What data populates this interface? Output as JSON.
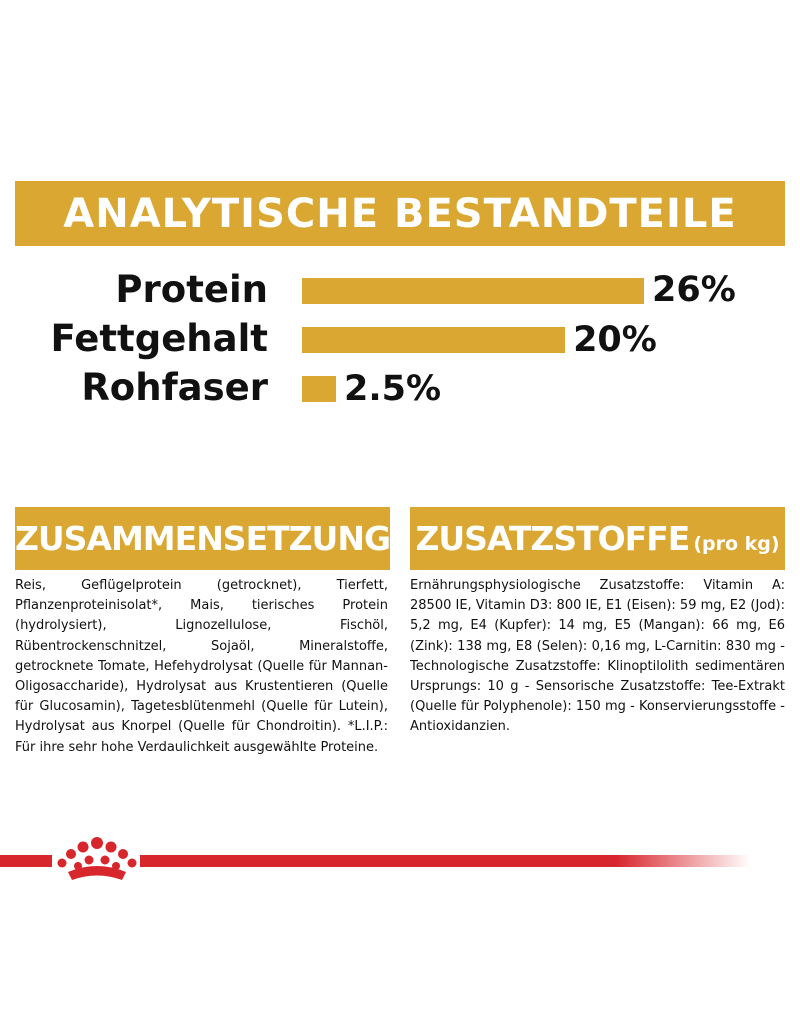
{
  "banner": {
    "title": "ANALYTISCHE BESTANDTEILE"
  },
  "nutrients": [
    {
      "label": "Protein",
      "value": "26%",
      "percent": 26
    },
    {
      "label": "Fettgehalt",
      "value": "20%",
      "percent": 20
    },
    {
      "label": "Rohfaser",
      "value": "2.5%",
      "percent": 2.5
    }
  ],
  "composition": {
    "title": "ZUSAMMENSETZUNG",
    "text": "Reis, Geflügelprotein (getrocknet), Tierfett, Pflanzenproteinisolat*, Mais, tierisches Protein (hydrolysiert), Lignozellulose, Fischöl, Rübentrockenschnitzel, Sojaöl, Mineralstoffe, getrocknete Tomate, Hefehydrolysat (Quelle für Mannan-Oligosaccharide), Hydrolysat aus Krustentieren (Quelle für Glucosamin), Tagetesblütenmehl (Quelle für Lutein), Hydrolysat aus Knorpel (Quelle für Chondroitin). *L.I.P.: Für ihre sehr hohe Verdaulichkeit ausgewählte Proteine."
  },
  "additives": {
    "title": "ZUSATZSTOFFE",
    "title_suffix": "(pro kg)",
    "text": "Ernährungsphysiologische Zusatzstoffe: Vitamin A: 28500 IE, Vitamin D3: 800 IE, E1 (Eisen): 59 mg, E2 (Jod): 5,2 mg, E4 (Kupfer): 14 mg, E5 (Mangan): 66 mg, E6 (Zink): 138 mg, E8 (Selen): 0,16 mg, L-Carnitin: 830 mg - Technologische Zusatzstoffe: Klinoptilolith sedimentären Ursprungs: 10 g - Sensorische Zusatzstoffe: Tee-Extrakt (Quelle für Polyphenole): 150 mg - Konservierungsstoffe - Antioxidanzien."
  },
  "footer": {
    "logo_icon": "royal-canin-crown-icon"
  },
  "colors": {
    "gold": "#d9a732",
    "red": "#d7262c",
    "text": "#111111"
  }
}
